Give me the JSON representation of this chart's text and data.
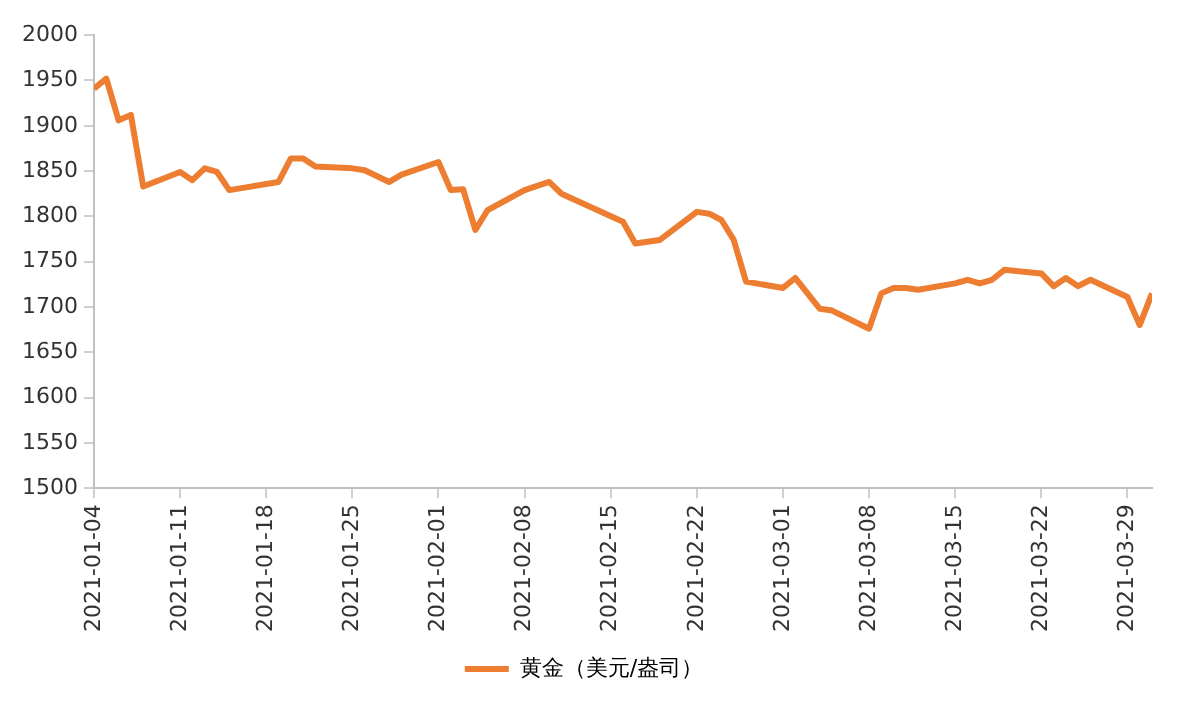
{
  "chart_data": {
    "type": "line",
    "x": [
      "2021-01-04",
      "2021-01-05",
      "2021-01-06",
      "2021-01-07",
      "2021-01-08",
      "2021-01-11",
      "2021-01-12",
      "2021-01-13",
      "2021-01-14",
      "2021-01-15",
      "2021-01-19",
      "2021-01-20",
      "2021-01-21",
      "2021-01-22",
      "2021-01-25",
      "2021-01-26",
      "2021-01-28",
      "2021-01-29",
      "2021-02-01",
      "2021-02-02",
      "2021-02-03",
      "2021-02-04",
      "2021-02-05",
      "2021-02-08",
      "2021-02-10",
      "2021-02-11",
      "2021-02-16",
      "2021-02-17",
      "2021-02-19",
      "2021-02-22",
      "2021-02-23",
      "2021-02-24",
      "2021-02-25",
      "2021-02-26",
      "2021-03-01",
      "2021-03-02",
      "2021-03-04",
      "2021-03-05",
      "2021-03-08",
      "2021-03-09",
      "2021-03-10",
      "2021-03-11",
      "2021-03-12",
      "2021-03-15",
      "2021-03-16",
      "2021-03-17",
      "2021-03-18",
      "2021-03-19",
      "2021-03-22",
      "2021-03-23",
      "2021-03-24",
      "2021-03-25",
      "2021-03-26",
      "2021-03-29",
      "2021-03-30",
      "2021-03-31"
    ],
    "series": [
      {
        "name": "黄金（美元/盎司）",
        "color": "#ed7d31",
        "values": [
          1941,
          1952,
          1906,
          1912,
          1833,
          1849,
          1840,
          1853,
          1849,
          1829,
          1838,
          1864,
          1864,
          1855,
          1853,
          1851,
          1838,
          1846,
          1860,
          1829,
          1830,
          1785,
          1807,
          1829,
          1838,
          1825,
          1794,
          1770,
          1774,
          1805,
          1803,
          1796,
          1774,
          1728,
          1721,
          1732,
          1698,
          1696,
          1676,
          1715,
          1721,
          1721,
          1719,
          1726,
          1730,
          1726,
          1730,
          1741,
          1737,
          1723,
          1732,
          1723,
          1730,
          1711,
          1680,
          1715
        ]
      }
    ],
    "xlim": [
      "2021-01-04",
      "2021-03-31"
    ],
    "xticks": [
      "2021-01-04",
      "2021-01-11",
      "2021-01-18",
      "2021-01-25",
      "2021-02-01",
      "2021-02-08",
      "2021-02-15",
      "2021-02-22",
      "2021-03-01",
      "2021-03-08",
      "2021-03-15",
      "2021-03-22",
      "2021-03-29"
    ],
    "ylim": [
      1500,
      2000
    ],
    "yticks": [
      1500,
      1550,
      1600,
      1650,
      1700,
      1750,
      1800,
      1850,
      1900,
      1950,
      2000
    ],
    "grid": false,
    "legend": "bottom",
    "marker": "none",
    "line_style": "solid"
  }
}
